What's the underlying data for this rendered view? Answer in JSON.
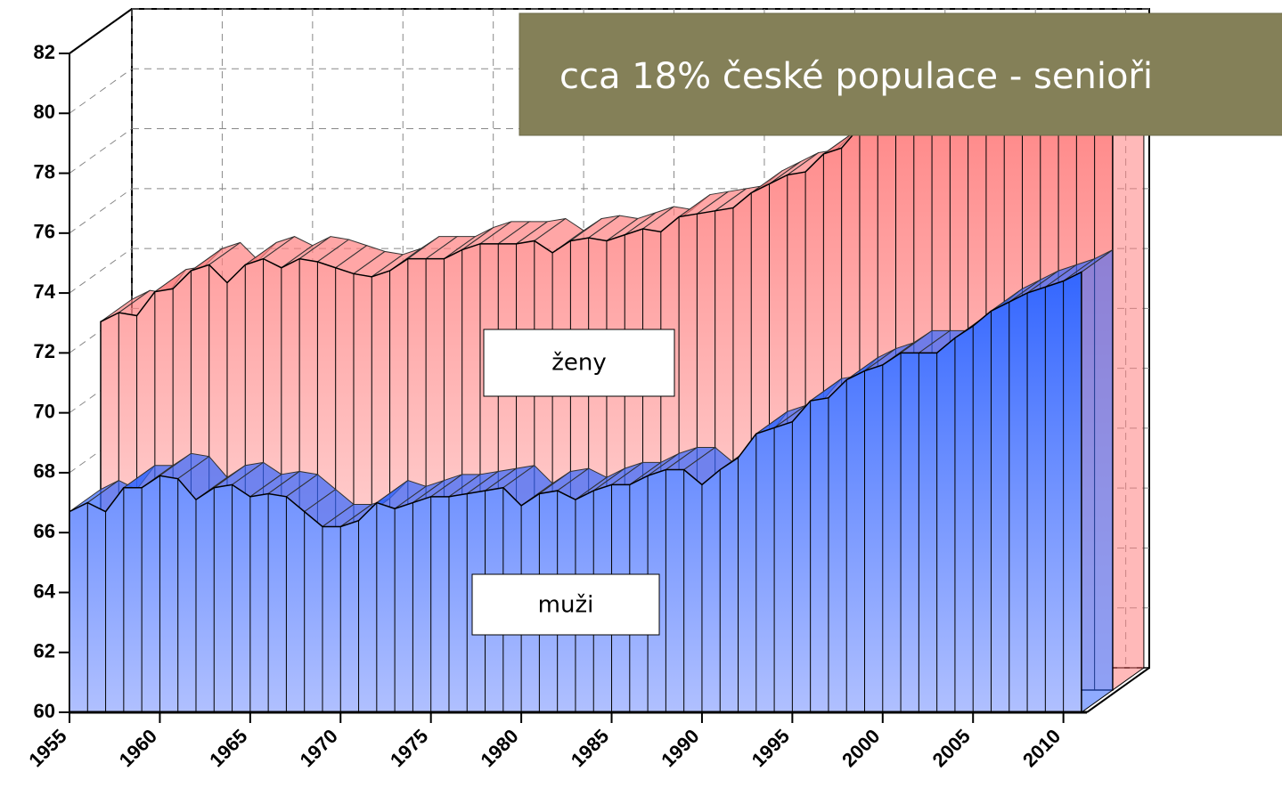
{
  "chart_data": {
    "type": "area3d",
    "annotation": "cca 18% české populace - senioři",
    "x": [
      1955,
      1956,
      1957,
      1958,
      1959,
      1960,
      1961,
      1962,
      1963,
      1964,
      1965,
      1966,
      1967,
      1968,
      1969,
      1970,
      1971,
      1972,
      1973,
      1974,
      1975,
      1976,
      1977,
      1978,
      1979,
      1980,
      1981,
      1982,
      1983,
      1984,
      1985,
      1986,
      1987,
      1988,
      1989,
      1990,
      1991,
      1992,
      1993,
      1994,
      1995,
      1996,
      1997,
      1998,
      1999,
      2000,
      2001,
      2002,
      2003,
      2004,
      2005,
      2006,
      2007,
      2008,
      2009,
      2010,
      2011
    ],
    "series": [
      {
        "name": "ženy",
        "color": "#ff8080",
        "values": [
          72.3,
          72.6,
          72.5,
          73.3,
          73.4,
          74.0,
          74.2,
          73.6,
          74.2,
          74.4,
          74.1,
          74.4,
          74.3,
          74.1,
          73.9,
          73.8,
          74.0,
          74.4,
          74.4,
          74.4,
          74.7,
          74.9,
          74.9,
          74.9,
          75.0,
          74.6,
          75.0,
          75.1,
          75.0,
          75.2,
          75.4,
          75.3,
          75.8,
          75.9,
          76.0,
          76.1,
          76.6,
          76.9,
          77.2,
          77.3,
          77.9,
          78.1,
          78.8,
          78.8,
          79.1,
          79.2,
          79.3,
          79.4,
          79.5,
          79.9,
          80.1,
          80.5,
          80.6,
          80.8,
          80.9,
          80.9,
          81.1
        ]
      },
      {
        "name": "muži",
        "color": "#3366ff",
        "values": [
          66.7,
          67.0,
          66.7,
          67.5,
          67.5,
          67.9,
          67.8,
          67.1,
          67.5,
          67.6,
          67.2,
          67.3,
          67.2,
          66.7,
          66.2,
          66.2,
          66.4,
          67.0,
          66.8,
          67.0,
          67.2,
          67.2,
          67.3,
          67.4,
          67.5,
          66.9,
          67.3,
          67.4,
          67.1,
          67.4,
          67.6,
          67.6,
          67.9,
          68.1,
          68.1,
          67.6,
          68.1,
          68.5,
          69.3,
          69.5,
          69.7,
          70.4,
          70.5,
          71.1,
          71.4,
          71.6,
          72.0,
          72.0,
          72.0,
          72.5,
          72.9,
          73.4,
          73.7,
          74.0,
          74.2,
          74.4,
          74.7
        ]
      }
    ],
    "xlim": [
      1955,
      2011.3
    ],
    "xticks": [
      1955,
      1960,
      1965,
      1970,
      1975,
      1980,
      1985,
      1990,
      1995,
      2000,
      2005,
      2010
    ],
    "ylim": [
      60,
      82
    ],
    "yticks": [
      60,
      62,
      64,
      66,
      68,
      70,
      72,
      74,
      76,
      78,
      80,
      82
    ],
    "grid": true
  }
}
